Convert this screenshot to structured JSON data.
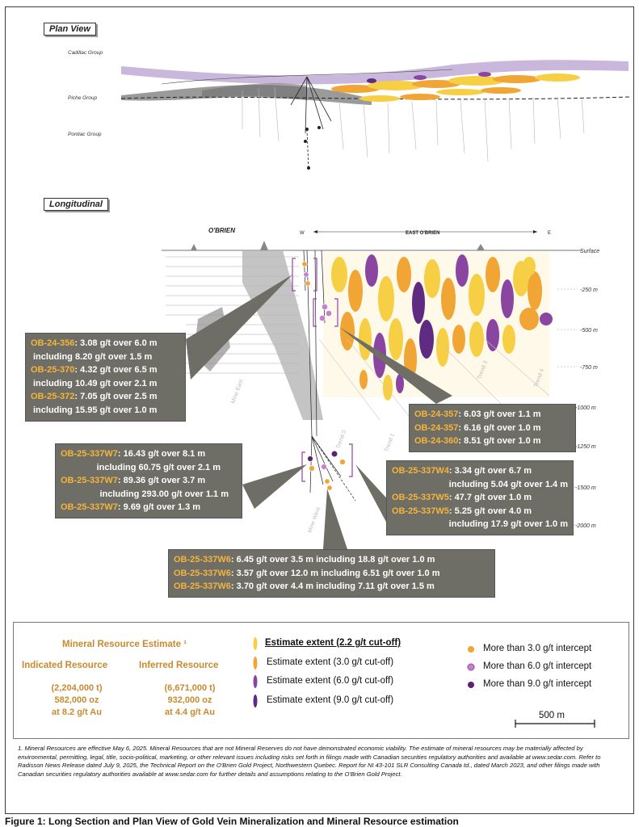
{
  "plan_view": {
    "title": "Plan View",
    "groups": [
      "Cadillac Group",
      "Piche Group",
      "Pontiac Group"
    ]
  },
  "longitudinal": {
    "title": "Longitudinal",
    "obrien_label": "O'BRIEN",
    "east_label": "EAST O'BRIEN",
    "west_marker": "W",
    "east_marker": "E",
    "surface_label": "Surface",
    "depths": [
      "-250 m",
      "-500 m",
      "-750 m",
      "-1000 m",
      "-1250 m",
      "-1500 m",
      "-2000 m"
    ],
    "trend_labels": [
      "Mine East",
      "Trend 0",
      "Trend 1",
      "Trend 3",
      "Trend 4",
      "Mine West"
    ]
  },
  "callouts": {
    "upper_left": [
      {
        "hole": "OB-24-356",
        "text": ": 3.08 g/t over 6.0 m"
      },
      {
        "hole": "",
        "text": "including 8.20 g/t over 1.5 m"
      },
      {
        "hole": "OB-25-370",
        "text": ": 4.32 g/t over 6.5 m"
      },
      {
        "hole": "",
        "text": "including 10.49 g/t over 2.1 m"
      },
      {
        "hole": "OB-25-372",
        "text": ": 7.05 g/t over 2.5 m"
      },
      {
        "hole": "",
        "text": "including 15.95 g/t over 1.0 m"
      }
    ],
    "upper_right": [
      {
        "hole": "OB-24-357",
        "text": ": 6.03 g/t over 1.1 m"
      },
      {
        "hole": "OB-24-357",
        "text": ": 6.16 g/t over 1.0 m"
      },
      {
        "hole": "OB-24-360",
        "text": ": 8.51 g/t over 1.0 m"
      }
    ],
    "mid_left": [
      {
        "hole": "OB-25-337W7",
        "text": ": 16.43 g/t over 8.1 m"
      },
      {
        "hole": "",
        "text": "including 60.75 g/t over 2.1 m"
      },
      {
        "hole": "OB-25-337W7",
        "text": ": 89.36 g/t over 3.7 m"
      },
      {
        "hole": "",
        "text": "including 293.00 g/t over 1.1 m"
      },
      {
        "hole": "OB-25-337W7",
        "text": ": 9.69 g/t over 1.3 m"
      }
    ],
    "mid_right": [
      {
        "hole": "OB-25-337W4",
        "text": ": 3.34 g/t over 6.7 m"
      },
      {
        "hole": "",
        "text": "including 5.04 g/t over 1.4 m"
      },
      {
        "hole": "OB-25-337W5",
        "text": ": 47.7 g/t over 1.0 m"
      },
      {
        "hole": "OB-25-337W5",
        "text": ": 5.25 g/t over 4.0 m"
      },
      {
        "hole": "",
        "text": "including 17.9 g/t over 1.0 m"
      }
    ],
    "bottom": [
      {
        "hole": "OB-25-337W6",
        "text": ": 6.45 g/t over 3.5 m including 18.8 g/t over 1.0 m"
      },
      {
        "hole": "OB-25-337W6",
        "text": ": 3.57 g/t over 12.0 m including 6.51 g/t over 1.0 m"
      },
      {
        "hole": "OB-25-337W6",
        "text": ": 3.70 g/t over 4.4 m including 7.11 g/t over 1.5 m"
      }
    ]
  },
  "legend": {
    "mre_title": "Mineral Resource Estimate ¹",
    "indicated": {
      "title": "Indicated Resource",
      "tonnes": "(2,204,000 t)",
      "ounces": "582,000 oz",
      "grade": "at 8.2 g/t Au"
    },
    "inferred": {
      "title": "Inferred Resource",
      "tonnes": "(6,671,000 t)",
      "ounces": "932,000 oz",
      "grade": "at 4.4 g/t Au"
    },
    "extents": [
      {
        "label": "Estimate extent (2.2  g/t cut-off)",
        "color": "#f7cf45"
      },
      {
        "label": "Estimate extent (3.0  g/t cut-off)",
        "color": "#f1a535"
      },
      {
        "label": "Estimate extent (6.0  g/t cut-off)",
        "color": "#8a45a0"
      },
      {
        "label": "Estimate extent (9.0  g/t cut-off)",
        "color": "#5e2a82"
      }
    ],
    "intercepts": [
      {
        "label": "More than 3.0 g/t intercept",
        "color": "#f1a535"
      },
      {
        "label": "More than 6.0 g/t intercept",
        "color": "#c77fd1"
      },
      {
        "label": "More than 9.0 g/t intercept",
        "color": "#5a2270"
      }
    ],
    "scale_label": "500 m"
  },
  "footnote": "1. Mineral Resources are effective May 6, 2025. Mineral Resources that are not Mineral Reserves do not have demonstrated economic viability. The estimate of mineral resources may be materially affected by environmental, permitting, legal, title, socio-political, marketing, or other relevant issues including risks set forth in filings made with Canadian securities regulatory authorities and available at www.sedar.com. Refer to Radisson News Release dated July 9, 2025, the Technical Report on the O'Brien Gold Project, Northwestern Quebec. Report for NI 43-101 SLR Consulting Canada td., dated March 2023, and other filings made with Canadian securities regulatory authorities available at www.sedar.com for further details and assumptions relating to the O'Brien Gold Project.",
  "caption": "Figure 1: Long Section and Plan View of Gold Vein Mineralization and Mineral Resource estimation"
}
